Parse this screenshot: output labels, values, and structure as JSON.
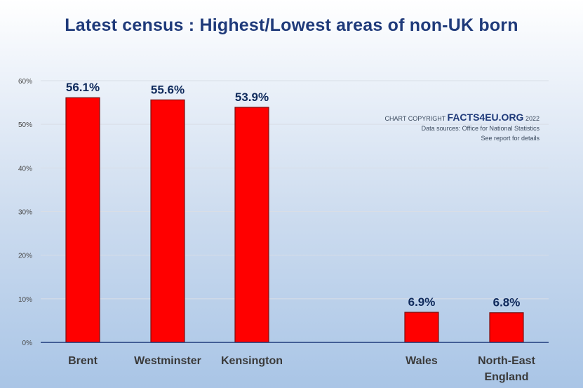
{
  "chart_data": {
    "type": "bar",
    "title": "Latest census : Highest/Lowest areas of non-UK born",
    "categories": [
      "Brent",
      "Westminster",
      "Kensington",
      "Wales",
      "North-East England"
    ],
    "category_lines": [
      [
        "Brent"
      ],
      [
        "Westminster"
      ],
      [
        "Kensington"
      ],
      [
        "Wales"
      ],
      [
        "North-East",
        "England"
      ]
    ],
    "values": [
      56.1,
      55.6,
      53.9,
      6.9,
      6.8
    ],
    "data_labels": [
      "56.1%",
      "55.6%",
      "53.9%",
      "6.9%",
      "6.8%"
    ],
    "ylim": [
      0,
      60
    ],
    "yticks": [
      0,
      10,
      20,
      30,
      40,
      50,
      60
    ],
    "ytick_labels": [
      "0%",
      "10%",
      "20%",
      "30%",
      "40%",
      "50%",
      "60%"
    ],
    "xlabel": "",
    "ylabel": "",
    "grid": true,
    "bar_color": "#ff0000",
    "bar_edge_color": "#7a1010"
  },
  "copyright": {
    "prefix": "CHART COPYRIGHT",
    "brand": "FACTS4EU.ORG",
    "year": "2022",
    "source": "Data sources: Office for National Statistics",
    "note": "See report for details"
  },
  "colors": {
    "title": "#1f3a7a",
    "data_label": "#0f2a5c",
    "grid": "#d9dee6",
    "axis": "#1f3a7a"
  }
}
